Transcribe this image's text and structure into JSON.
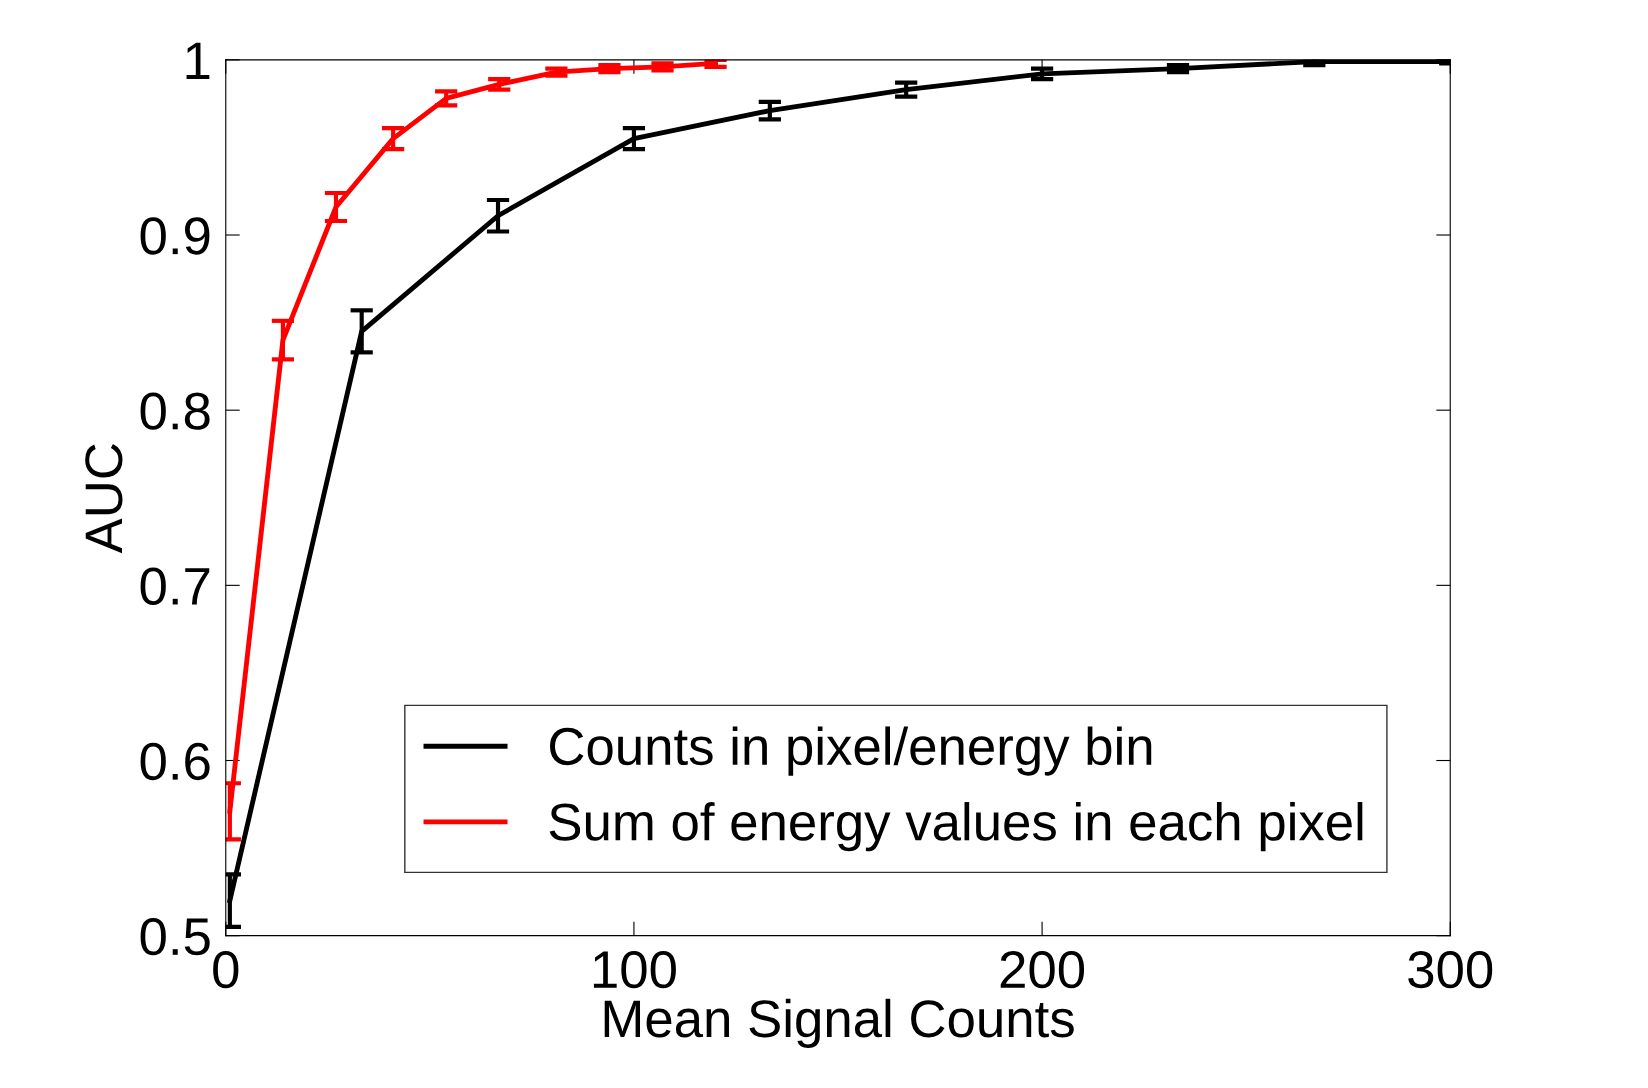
{
  "chart_data": {
    "type": "line",
    "xlabel": "Mean Signal Counts",
    "ylabel": "AUC",
    "xlim": [
      0,
      300
    ],
    "ylim": [
      0.5,
      1
    ],
    "xticks": [
      0,
      100,
      200,
      300
    ],
    "yticks": [
      0.5,
      0.6,
      0.7,
      0.8,
      0.9,
      1
    ],
    "grid": false,
    "legend": "bottom right",
    "marker": "none",
    "line_style": "solid",
    "series": [
      {
        "name": "Counts in pixel/energy bin",
        "color": "#000000",
        "x": [
          1,
          33.3,
          66.7,
          100,
          133.3,
          166.7,
          200,
          233.3,
          266.7,
          300
        ],
        "values": [
          0.52,
          0.845,
          0.911,
          0.955,
          0.971,
          0.983,
          0.992,
          0.995,
          0.999,
          0.999
        ],
        "errors": [
          0.015,
          0.012,
          0.009,
          0.006,
          0.005,
          0.004,
          0.003,
          0.002,
          0.002,
          0.001
        ]
      },
      {
        "name": "Sum of energy values in each pixel",
        "color": "#ff0000",
        "x": [
          1,
          14,
          27,
          41,
          54,
          67,
          81,
          94,
          107,
          120
        ],
        "values": [
          0.571,
          0.84,
          0.916,
          0.955,
          0.978,
          0.986,
          0.993,
          0.995,
          0.996,
          0.998
        ],
        "errors": [
          0.016,
          0.011,
          0.008,
          0.006,
          0.004,
          0.003,
          0.002,
          0.002,
          0.002,
          0.002
        ]
      }
    ]
  }
}
